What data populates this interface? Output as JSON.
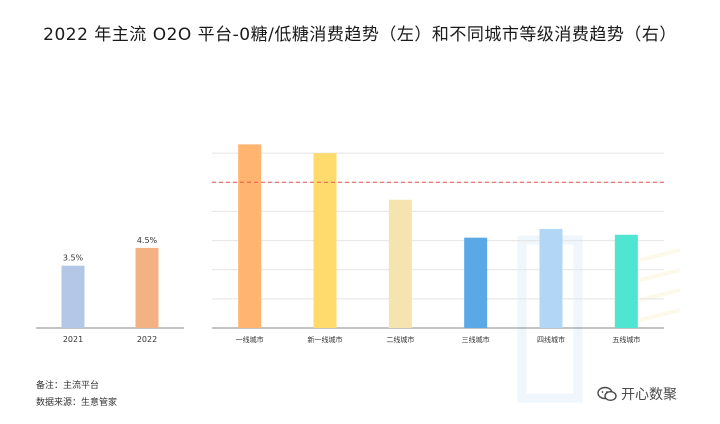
{
  "title": "2022 年主流 O2O 平台-0糖/低糖消费趋势（左）和不同城市等级消费趋势（右）",
  "chart_data": [
    {
      "type": "bar",
      "categories": [
        "2021",
        "2022"
      ],
      "values": [
        3.5,
        4.5
      ],
      "value_labels": [
        "3.5%",
        "4.5%"
      ],
      "colors": [
        "#b4c7e7",
        "#f4b183"
      ],
      "ylim": [
        0,
        10
      ],
      "grid": false
    },
    {
      "type": "bar",
      "categories": [
        "一线城市",
        "新一线城市",
        "二线城市",
        "三线城市",
        "四线城市",
        "五线城市"
      ],
      "values": [
        6.3,
        6.0,
        4.4,
        3.1,
        3.4,
        3.2
      ],
      "colors": [
        "#ffb570",
        "#ffdb6e",
        "#f5e4b0",
        "#5aa9e6",
        "#b2d7f6",
        "#4ee6d0"
      ],
      "ylim": [
        0,
        7
      ],
      "gridlines": [
        1,
        2,
        3,
        4,
        5,
        6
      ],
      "reference_line": 5.0,
      "reference_line_color": "#e05a4f",
      "grid": true
    }
  ],
  "notes": {
    "line1": "备注：主流平台",
    "line2": "数据来源：生意管家"
  },
  "watermark": {
    "text": "开心数聚",
    "icon": "wechat-icon"
  }
}
